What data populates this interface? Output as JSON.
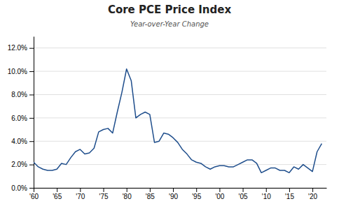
{
  "chart_data": {
    "type": "line",
    "title": "Core PCE Price Index",
    "subtitle": "Year-over-Year Change",
    "x": [
      1960,
      1961,
      1962,
      1963,
      1964,
      1965,
      1966,
      1967,
      1968,
      1969,
      1970,
      1971,
      1972,
      1973,
      1974,
      1975,
      1976,
      1977,
      1978,
      1979,
      1980,
      1981,
      1982,
      1983,
      1984,
      1985,
      1986,
      1987,
      1988,
      1989,
      1990,
      1991,
      1992,
      1993,
      1994,
      1995,
      1996,
      1997,
      1998,
      1999,
      2000,
      2001,
      2002,
      2003,
      2004,
      2005,
      2006,
      2007,
      2008,
      2009,
      2010,
      2011,
      2012,
      2013,
      2014,
      2015,
      2016,
      2017,
      2018,
      2019,
      2020,
      2021,
      2022
    ],
    "values": [
      0.022,
      0.018,
      0.016,
      0.015,
      0.015,
      0.016,
      0.021,
      0.02,
      0.026,
      0.031,
      0.033,
      0.029,
      0.03,
      0.034,
      0.048,
      0.05,
      0.051,
      0.047,
      0.065,
      0.082,
      0.102,
      0.092,
      0.06,
      0.063,
      0.065,
      0.063,
      0.039,
      0.04,
      0.047,
      0.046,
      0.043,
      0.039,
      0.033,
      0.029,
      0.024,
      0.022,
      0.021,
      0.018,
      0.016,
      0.018,
      0.019,
      0.019,
      0.018,
      0.018,
      0.02,
      0.022,
      0.024,
      0.024,
      0.021,
      0.013,
      0.015,
      0.017,
      0.017,
      0.015,
      0.015,
      0.013,
      0.018,
      0.016,
      0.02,
      0.017,
      0.014,
      0.031,
      0.038
    ],
    "color": "#1f4e8c",
    "xlim": [
      1960,
      2023
    ],
    "xticks": [
      {
        "value": 1960,
        "label": "'60"
      },
      {
        "value": 1965,
        "label": "'65"
      },
      {
        "value": 1970,
        "label": "'70"
      },
      {
        "value": 1975,
        "label": "'75"
      },
      {
        "value": 1980,
        "label": "'80"
      },
      {
        "value": 1985,
        "label": "'85"
      },
      {
        "value": 1990,
        "label": "'90"
      },
      {
        "value": 1995,
        "label": "'95"
      },
      {
        "value": 2000,
        "label": "'00"
      },
      {
        "value": 2005,
        "label": "'05"
      },
      {
        "value": 2010,
        "label": "'10"
      },
      {
        "value": 2015,
        "label": "'15"
      },
      {
        "value": 2020,
        "label": "'20"
      }
    ],
    "ylim": [
      0.0,
      0.13
    ],
    "yticks": [
      {
        "value": 0.0,
        "label": "0.0%"
      },
      {
        "value": 0.02,
        "label": "2.0%"
      },
      {
        "value": 0.04,
        "label": "4.0%"
      },
      {
        "value": 0.06,
        "label": "6.0%"
      },
      {
        "value": 0.08,
        "label": "8.0%"
      },
      {
        "value": 0.1,
        "label": "10.0%"
      },
      {
        "value": 0.12,
        "label": "12.0%"
      }
    ],
    "grid": true
  }
}
